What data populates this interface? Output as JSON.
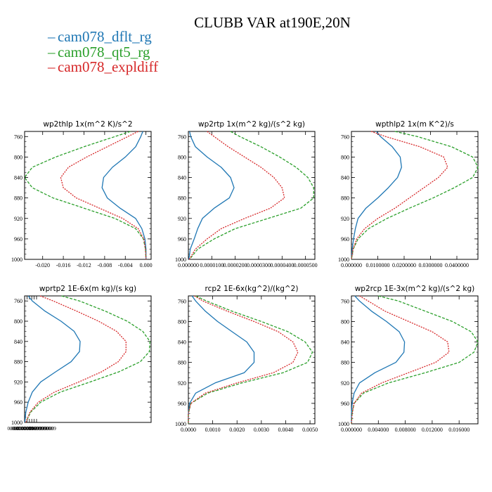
{
  "title": "CLUBB VAR at190E,20N",
  "legend": [
    {
      "name": "cam078_dflt_rg",
      "color": "#1f77b4"
    },
    {
      "name": "cam078_qt5_rg",
      "color": "#2ca02c"
    },
    {
      "name": "cam078_expldiff",
      "color": "#d62728"
    }
  ],
  "chart_data": [
    {
      "type": "line",
      "title": "wp2thlp   1x(m^2 K)/s^2",
      "xlim": [
        -0.0235,
        0.001
      ],
      "ylim": [
        750,
        1000
      ],
      "yticks": [
        760,
        800,
        840,
        880,
        920,
        960,
        1000
      ],
      "xticks": [
        -0.02,
        -0.016,
        -0.012,
        -0.008,
        -0.004,
        0.0
      ],
      "xtick_labels": [
        "-0.020",
        "-0.016",
        "-0.012",
        "-0.008",
        "-0.004",
        "0.000"
      ],
      "y": [
        750,
        760,
        780,
        800,
        820,
        840,
        860,
        880,
        900,
        920,
        940,
        960,
        980,
        1000
      ],
      "series": [
        {
          "name": "cam078_dflt_rg",
          "values": [
            -0.0006,
            -0.001,
            -0.002,
            -0.004,
            -0.0065,
            -0.0082,
            -0.0085,
            -0.0075,
            -0.005,
            -0.002,
            -0.0008,
            -0.0002,
            0.0,
            0.0
          ]
        },
        {
          "name": "cam078_qt5_rg",
          "values": [
            -0.003,
            -0.006,
            -0.012,
            -0.0175,
            -0.022,
            -0.0235,
            -0.022,
            -0.018,
            -0.012,
            -0.006,
            -0.002,
            -0.0005,
            -0.0001,
            0.0
          ]
        },
        {
          "name": "cam078_expldiff",
          "values": [
            -0.0015,
            -0.0035,
            -0.0075,
            -0.0115,
            -0.015,
            -0.0165,
            -0.016,
            -0.0135,
            -0.009,
            -0.0045,
            -0.0015,
            -0.0004,
            -0.0001,
            0.0
          ]
        }
      ]
    },
    {
      "type": "line",
      "title": "wp2rtp   1x(m^2 kg)/(s^2 kg)",
      "xlim": [
        0.0,
        5.4e-05
      ],
      "ylim": [
        750,
        1000
      ],
      "yticks": [
        760,
        800,
        840,
        880,
        920,
        960,
        1000
      ],
      "xticks": [
        0.0,
        1e-05,
        2e-05,
        3e-05,
        4e-05,
        5e-05
      ],
      "xtick_labels": [
        "0.000000",
        "0.0000100",
        "0.0000200",
        "0.0000300",
        "0.0000400",
        "0.0000500"
      ],
      "y": [
        750,
        760,
        780,
        800,
        820,
        840,
        860,
        880,
        900,
        920,
        940,
        960,
        980,
        1000
      ],
      "series": [
        {
          "name": "cam078_dflt_rg",
          "values": [
            5e-07,
            1e-06,
            3e-06,
            8e-06,
            1.4e-05,
            1.8e-05,
            1.95e-05,
            1.75e-05,
            1.1e-05,
            6e-06,
            4e-06,
            2.5e-06,
            8e-07,
            2e-07
          ]
        },
        {
          "name": "cam078_qt5_rg",
          "values": [
            1.8e-05,
            2.2e-05,
            3.1e-05,
            3.9e-05,
            4.6e-05,
            5.1e-05,
            5.35e-05,
            5.35e-05,
            4.8e-05,
            3.4e-05,
            2e-05,
            1.1e-05,
            4e-06,
            5e-07
          ]
        },
        {
          "name": "cam078_expldiff",
          "values": [
            8e-06,
            1.1e-05,
            1.7e-05,
            2.4e-05,
            3.1e-05,
            3.65e-05,
            4e-05,
            4.1e-05,
            3.5e-05,
            2.4e-05,
            1.4e-05,
            8e-06,
            3e-06,
            4e-07
          ]
        }
      ]
    },
    {
      "type": "line",
      "title": "wpthlp2   1x(m K^2)/s",
      "xlim": [
        0.0,
        0.048
      ],
      "ylim": [
        750,
        1000
      ],
      "yticks": [
        760,
        800,
        840,
        880,
        920,
        960,
        1000
      ],
      "xticks": [
        0.0,
        0.01,
        0.02,
        0.03,
        0.04
      ],
      "xtick_labels": [
        "0.000000",
        "0.0100000",
        "0.0200000",
        "0.0300000",
        "0.0400000"
      ],
      "y": [
        750,
        760,
        780,
        800,
        820,
        840,
        860,
        880,
        900,
        920,
        940,
        960,
        980,
        1000
      ],
      "series": [
        {
          "name": "cam078_dflt_rg",
          "values": [
            0.0095,
            0.011,
            0.0155,
            0.0185,
            0.019,
            0.0175,
            0.014,
            0.01,
            0.0055,
            0.0025,
            0.0015,
            0.0008,
            0.0003,
            0.0
          ]
        },
        {
          "name": "cam078_qt5_rg",
          "values": [
            0.0165,
            0.025,
            0.038,
            0.046,
            0.048,
            0.046,
            0.039,
            0.031,
            0.022,
            0.0135,
            0.0065,
            0.0025,
            0.0007,
            0.0
          ]
        },
        {
          "name": "cam078_expldiff",
          "values": [
            0.0075,
            0.013,
            0.026,
            0.035,
            0.0365,
            0.033,
            0.0275,
            0.022,
            0.0165,
            0.01,
            0.005,
            0.002,
            0.0006,
            0.0
          ]
        }
      ]
    },
    {
      "type": "line",
      "title": "wprtp2   1E-6x(m kg)/(s kg)",
      "xlim": [
        0.0,
        2.12e-05
      ],
      "ylim": [
        750,
        1000
      ],
      "yticks": [
        760,
        800,
        840,
        880,
        920,
        960,
        1000
      ],
      "xticks": [
        0.0,
        4e-07,
        8e-07,
        1.2e-06,
        1.6e-06,
        2e-06
      ],
      "xtick_labels": [
        "0.00000000",
        "0.00000039999999",
        "0.00000079999999",
        "0.00000120000000",
        "0.00000160000000",
        "0.00000199999999"
      ],
      "tick_scale": 0.1,
      "y": [
        750,
        760,
        780,
        800,
        820,
        840,
        860,
        880,
        900,
        920,
        940,
        960,
        980,
        1000
      ],
      "series": [
        {
          "name": "cam078_dflt_rg",
          "values": [
            6e-07,
            1.3e-06,
            3.4e-06,
            6.1e-06,
            8.3e-06,
            9.3e-06,
            9.2e-06,
            7.8e-06,
            5.2e-06,
            2.7e-06,
            1.3e-06,
            6e-07,
            2e-07,
            5e-08
          ]
        },
        {
          "name": "cam078_qt5_rg",
          "values": [
            6.2e-06,
            9.2e-06,
            1.35e-05,
            1.72e-05,
            1.98e-05,
            2.1e-05,
            2.09e-05,
            1.94e-05,
            1.58e-05,
            1.1e-05,
            6e-06,
            2.7e-06,
            1e-06,
            2e-07
          ]
        },
        {
          "name": "cam078_expldiff",
          "values": [
            2.6e-06,
            4.8e-06,
            8.7e-06,
            1.24e-05,
            1.54e-05,
            1.7e-05,
            1.7e-05,
            1.57e-05,
            1.29e-05,
            9.1e-06,
            5e-06,
            2.3e-06,
            9e-07,
            2e-07
          ]
        }
      ]
    },
    {
      "type": "line",
      "title": "rcp2   1E-6x(kg^2)/(kg^2)",
      "xlim": [
        0.0,
        0.0052
      ],
      "ylim": [
        750,
        1000
      ],
      "yticks": [
        760,
        800,
        840,
        880,
        920,
        960,
        1000
      ],
      "xticks": [
        0.0,
        0.001,
        0.002,
        0.003,
        0.004,
        0.005
      ],
      "xtick_labels": [
        "0.0000",
        "0.0010",
        "0.0020",
        "0.0030",
        "0.0040",
        "0.0050"
      ],
      "y": [
        750,
        760,
        780,
        800,
        820,
        840,
        860,
        880,
        900,
        920,
        940,
        960,
        980,
        1000
      ],
      "series": [
        {
          "name": "cam078_dflt_rg",
          "values": [
            0.00015,
            0.0003,
            0.0007,
            0.0012,
            0.0018,
            0.0024,
            0.0027,
            0.0027,
            0.0023,
            0.0011,
            0.0003,
            5e-05,
            0.0,
            0.0
          ]
        },
        {
          "name": "cam078_qt5_rg",
          "values": [
            0.0003,
            0.00075,
            0.0018,
            0.003,
            0.0041,
            0.0048,
            0.0051,
            0.0049,
            0.0039,
            0.0022,
            0.0008,
            0.0001,
            0.0,
            0.0
          ]
        },
        {
          "name": "cam078_expldiff",
          "values": [
            0.00025,
            0.0006,
            0.0016,
            0.0027,
            0.0037,
            0.0043,
            0.0045,
            0.0043,
            0.0035,
            0.002,
            0.0007,
            0.0001,
            0.0,
            0.0
          ]
        }
      ]
    },
    {
      "type": "line",
      "title": "wp2rcp   1E-3x(m^2 kg)/(s^2 kg)",
      "xlim": [
        0.0,
        0.0188
      ],
      "ylim": [
        750,
        1000
      ],
      "yticks": [
        760,
        800,
        840,
        880,
        920,
        960,
        1000
      ],
      "xticks": [
        0.0,
        0.004,
        0.008,
        0.012,
        0.016
      ],
      "xtick_labels": [
        "0.000000",
        "0.004000",
        "0.008000",
        "0.012000",
        "0.016000"
      ],
      "y": [
        750,
        760,
        780,
        800,
        820,
        840,
        860,
        880,
        900,
        920,
        940,
        960,
        980,
        1000
      ],
      "series": [
        {
          "name": "cam078_dflt_rg",
          "values": [
            0.0005,
            0.0012,
            0.003,
            0.0052,
            0.0071,
            0.0079,
            0.0078,
            0.0066,
            0.0035,
            0.0012,
            0.0004,
            0.0001,
            0.0,
            0.0
          ]
        },
        {
          "name": "cam078_qt5_rg",
          "values": [
            0.004,
            0.007,
            0.011,
            0.015,
            0.0178,
            0.0188,
            0.0182,
            0.016,
            0.011,
            0.0055,
            0.0018,
            0.0004,
            0.0001,
            0.0
          ]
        },
        {
          "name": "cam078_expldiff",
          "values": [
            0.0012,
            0.0025,
            0.005,
            0.0085,
            0.012,
            0.0143,
            0.0145,
            0.0125,
            0.0085,
            0.0045,
            0.0015,
            0.0004,
            0.0001,
            0.0
          ]
        }
      ]
    }
  ]
}
